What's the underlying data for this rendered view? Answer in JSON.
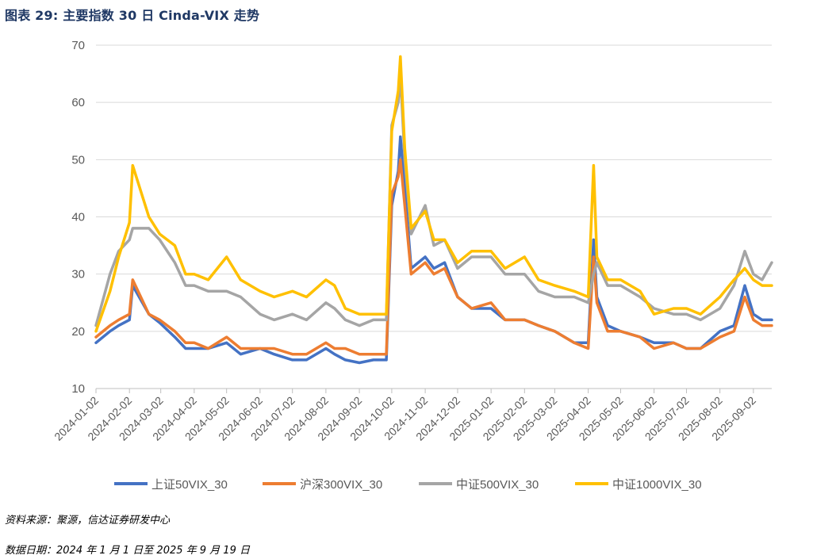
{
  "header": {
    "title": "图表 29:  主要指数 30 日 Cinda-VIX 走势"
  },
  "footer": {
    "source": "资料来源：聚源，信达证券研发中心",
    "date_range": "数据日期：2024 年 1 月 1 日至 2025 年 9 月 19 日"
  },
  "chart_data": {
    "type": "line",
    "title": "",
    "xlabel": "",
    "ylabel": "",
    "ylim": [
      10,
      70
    ],
    "yticks": [
      "10",
      "20",
      "30",
      "40",
      "50",
      "60",
      "70"
    ],
    "grid": "horizontal",
    "legend_position": "bottom",
    "x_ticks": [
      "2024-01-02",
      "2024-02-02",
      "2024-03-02",
      "2024-04-02",
      "2024-05-02",
      "2024-06-02",
      "2024-07-02",
      "2024-08-02",
      "2024-09-02",
      "2024-10-02",
      "2024-11-02",
      "2024-12-02",
      "2025-01-02",
      "2025-02-02",
      "2025-03-02",
      "2025-04-02",
      "2025-05-02",
      "2025-06-02",
      "2025-07-02",
      "2025-08-02",
      "2025-09-02"
    ],
    "x": [
      "2024-01-02",
      "2024-01-15",
      "2024-01-23",
      "2024-02-02",
      "2024-02-05",
      "2024-02-20",
      "2024-03-01",
      "2024-03-15",
      "2024-03-25",
      "2024-04-02",
      "2024-04-15",
      "2024-05-02",
      "2024-05-15",
      "2024-06-02",
      "2024-06-15",
      "2024-07-02",
      "2024-07-15",
      "2024-08-02",
      "2024-08-10",
      "2024-08-20",
      "2024-09-02",
      "2024-09-15",
      "2024-09-27",
      "2024-10-02",
      "2024-10-08",
      "2024-10-10",
      "2024-10-14",
      "2024-10-20",
      "2024-11-02",
      "2024-11-10",
      "2024-11-20",
      "2024-12-02",
      "2024-12-15",
      "2025-01-02",
      "2025-01-15",
      "2025-02-02",
      "2025-02-15",
      "2025-03-02",
      "2025-03-20",
      "2025-04-02",
      "2025-04-07",
      "2025-04-10",
      "2025-04-20",
      "2025-05-02",
      "2025-05-20",
      "2025-06-02",
      "2025-06-20",
      "2025-07-02",
      "2025-07-15",
      "2025-08-02",
      "2025-08-15",
      "2025-08-25",
      "2025-09-02",
      "2025-09-10",
      "2025-09-19"
    ],
    "series": [
      {
        "name": "上证50VIX_30",
        "color": "#4472c4",
        "values": [
          18,
          20,
          21,
          22,
          28,
          23,
          21.5,
          19,
          17,
          17,
          17,
          18,
          16,
          17,
          16,
          15,
          15,
          17,
          16,
          15,
          14.5,
          15,
          15,
          42,
          48,
          54,
          45,
          31,
          33,
          31,
          32,
          26,
          24,
          24,
          22,
          22,
          21,
          20,
          18,
          18,
          36,
          26,
          21,
          20,
          19,
          18,
          18,
          17,
          17,
          20,
          21,
          28,
          23,
          22,
          22
        ]
      },
      {
        "name": "沪深300VIX_30",
        "color": "#ed7d31",
        "values": [
          19,
          21,
          22,
          23,
          29,
          23,
          22,
          20,
          18,
          18,
          17,
          19,
          17,
          17,
          17,
          16,
          16,
          18,
          17,
          17,
          16,
          16,
          16,
          44,
          47,
          50,
          42,
          30,
          32,
          30,
          31,
          26,
          24,
          25,
          22,
          22,
          21,
          20,
          18,
          17,
          33,
          25,
          20,
          20,
          19,
          17,
          18,
          17,
          17,
          19,
          20,
          26,
          22,
          21,
          21
        ]
      },
      {
        "name": "中证500VIX_30",
        "color": "#a5a5a5",
        "values": [
          21,
          30,
          34,
          36,
          38,
          38,
          36,
          32,
          28,
          28,
          27,
          27,
          26,
          23,
          22,
          23,
          22,
          25,
          24,
          22,
          21,
          22,
          22,
          56,
          60,
          65,
          50,
          37,
          42,
          35,
          36,
          31,
          33,
          33,
          30,
          30,
          27,
          26,
          26,
          25,
          30,
          32,
          28,
          28,
          26,
          24,
          23,
          23,
          22,
          24,
          28,
          34,
          30,
          29,
          32
        ]
      },
      {
        "name": "中证1000VIX_30",
        "color": "#ffc000",
        "values": [
          20,
          27,
          33,
          39,
          49,
          40,
          37,
          35,
          30,
          30,
          29,
          33,
          29,
          27,
          26,
          27,
          26,
          29,
          28,
          24,
          23,
          23,
          23,
          55,
          62,
          68,
          52,
          38,
          41,
          36,
          36,
          32,
          34,
          34,
          31,
          33,
          29,
          28,
          27,
          26,
          49,
          33,
          29,
          29,
          27,
          23,
          24,
          24,
          23,
          26,
          29,
          31,
          29,
          28,
          28
        ]
      }
    ]
  }
}
